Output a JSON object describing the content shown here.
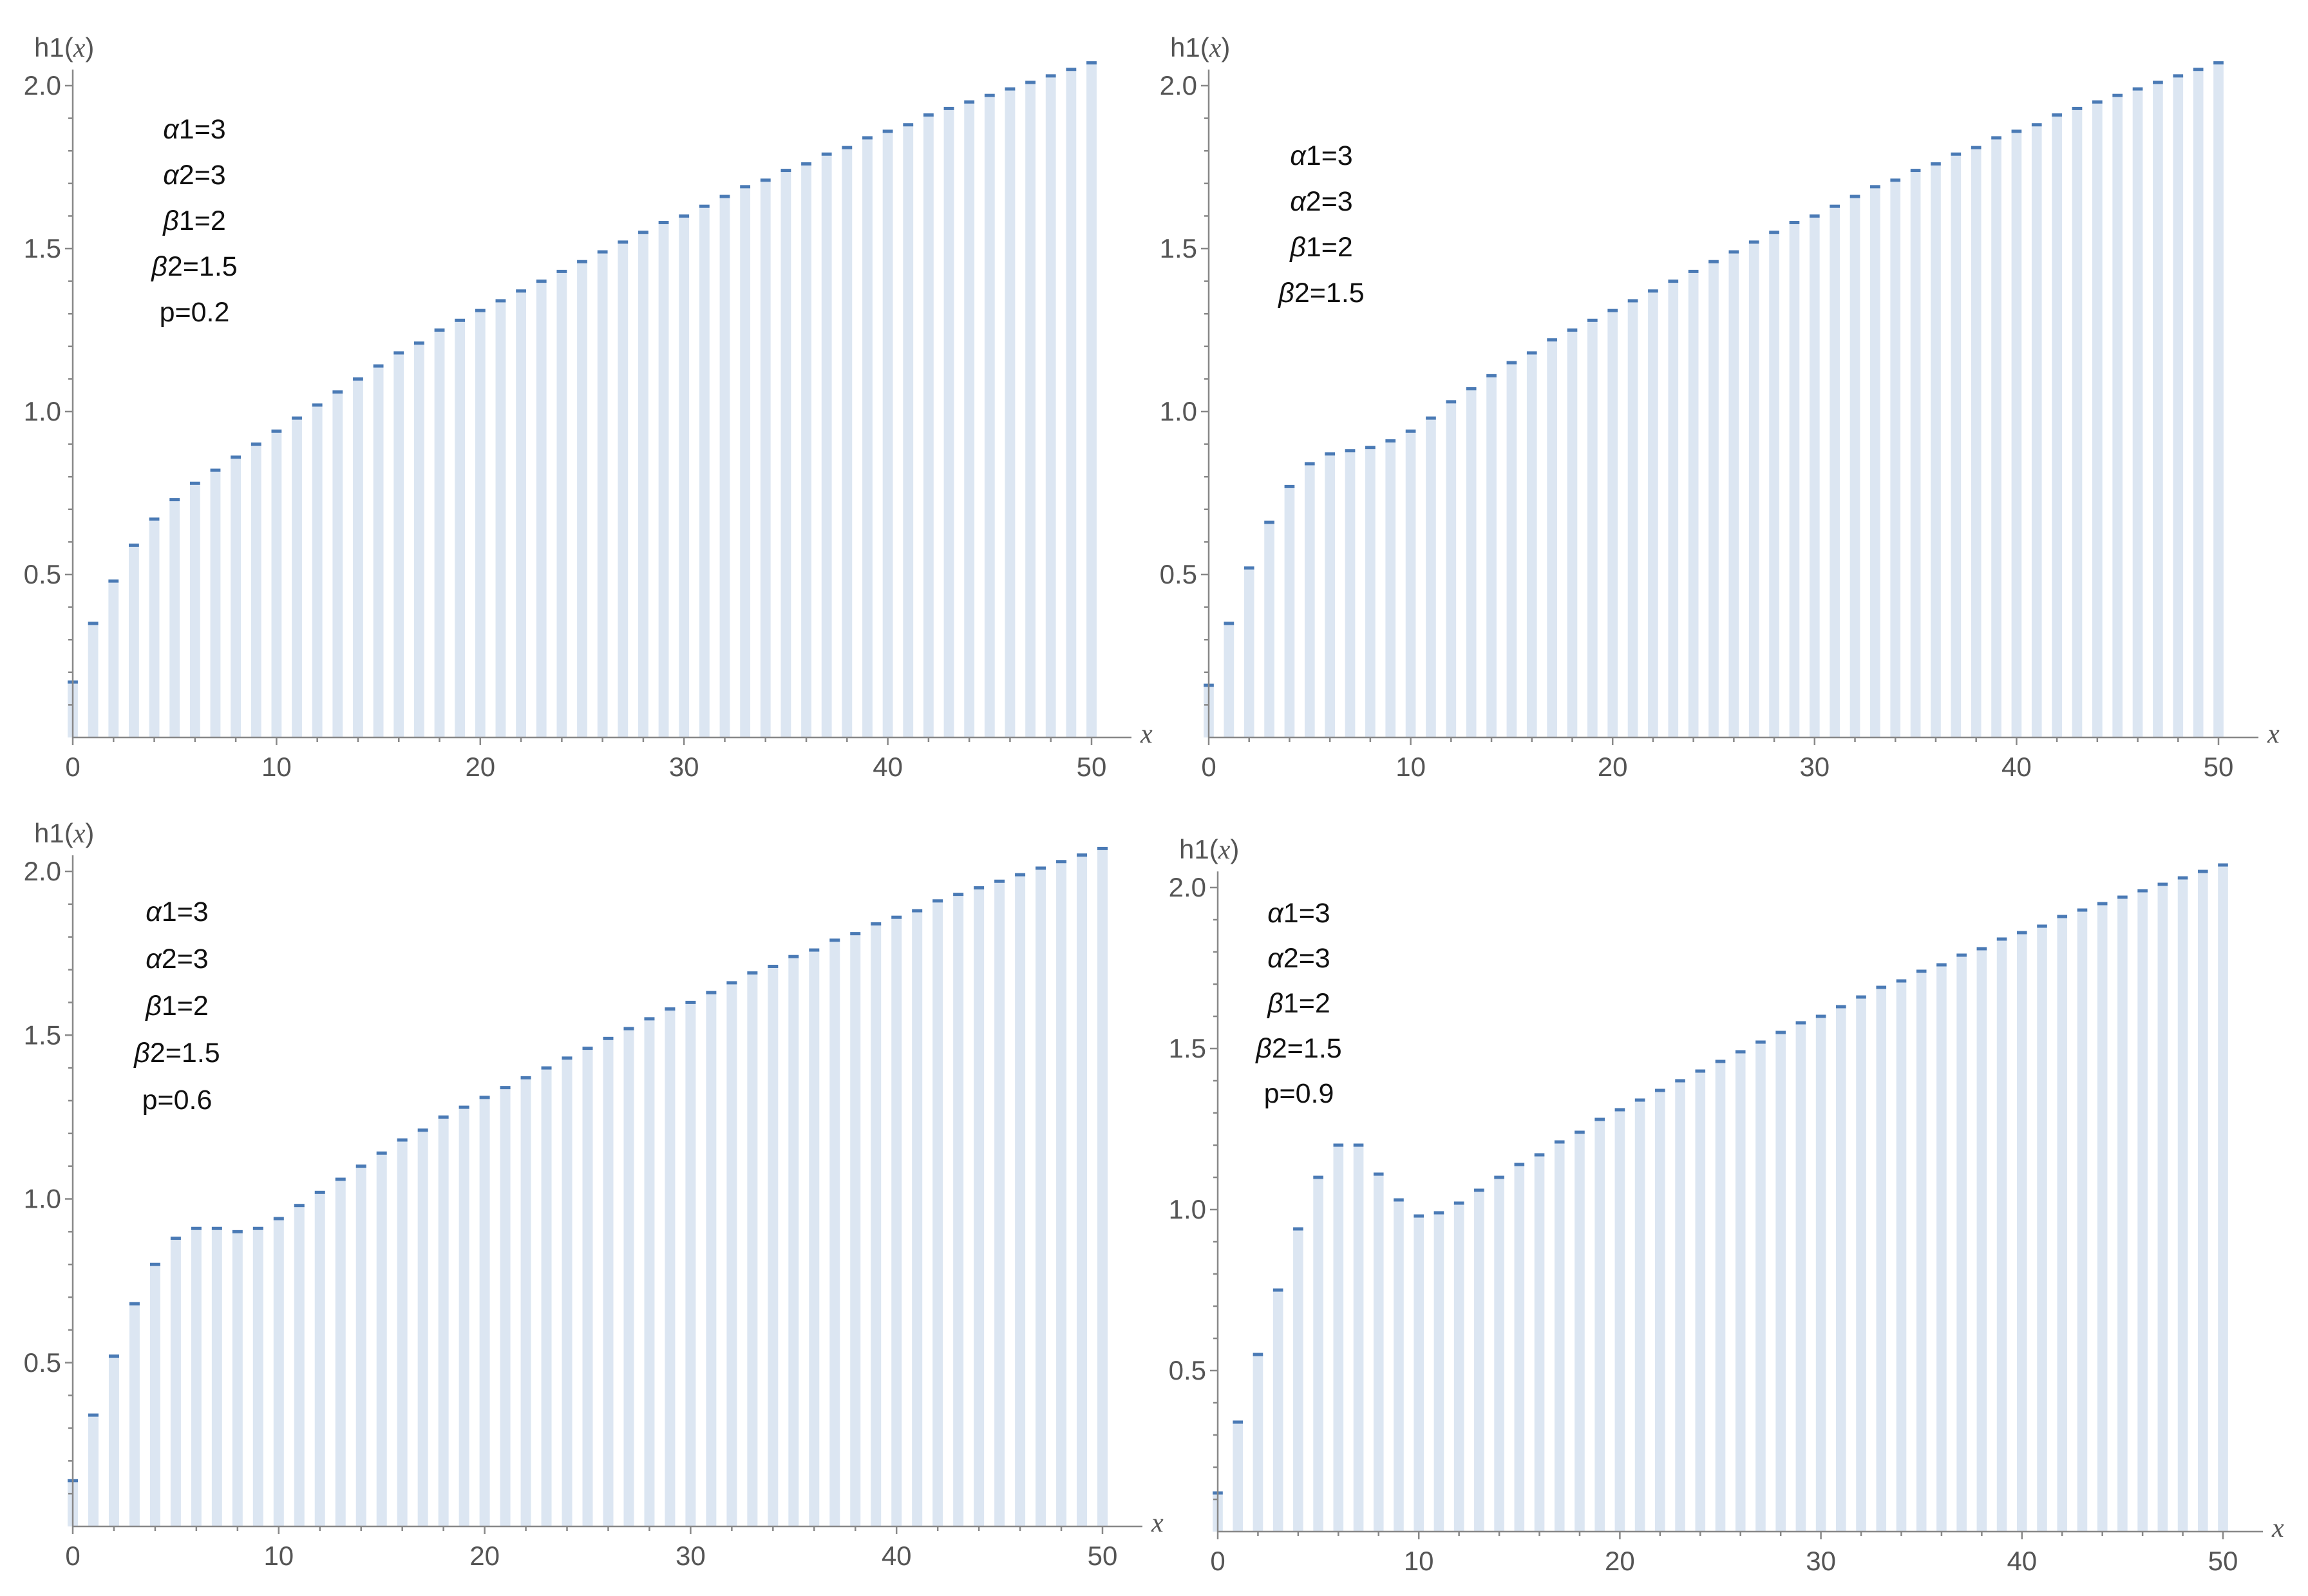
{
  "colors": {
    "bar": "#dce6f2",
    "cap": "#4a7ab5",
    "axis": "#888888",
    "tick_text": "#555555",
    "annotation": "#111111"
  },
  "chart_data": [
    {
      "type": "bar",
      "ylabel_prefix": "h1(",
      "ylabel_var": "x",
      "ylabel_suffix": ")",
      "xlabel": "x",
      "xlim": [
        0,
        50
      ],
      "ylim": [
        0,
        2.0
      ],
      "xticks": [
        "0",
        "10",
        "20",
        "30",
        "40",
        "50"
      ],
      "yticks": [
        "0.5",
        "1.0",
        "1.5",
        "2.0"
      ],
      "annotations": [
        "α1=3",
        "α2=3",
        "β1=2",
        "β2=1.5",
        "p=0.2"
      ],
      "series": [
        {
          "x": [
            0,
            1,
            2,
            3,
            4,
            5,
            6,
            7,
            8,
            9,
            10,
            11,
            12,
            13,
            14,
            15,
            16,
            17,
            18,
            19,
            20,
            21,
            22,
            23,
            24,
            25,
            26,
            27,
            28,
            29,
            30,
            31,
            32,
            33,
            34,
            35,
            36,
            37,
            38,
            39,
            40,
            41,
            42,
            43,
            44,
            45,
            46,
            47,
            48,
            49,
            50
          ],
          "values": [
            0.17,
            0.35,
            0.48,
            0.59,
            0.67,
            0.73,
            0.78,
            0.82,
            0.86,
            0.9,
            0.94,
            0.98,
            1.02,
            1.06,
            1.1,
            1.14,
            1.18,
            1.21,
            1.25,
            1.28,
            1.31,
            1.34,
            1.37,
            1.4,
            1.43,
            1.46,
            1.49,
            1.52,
            1.55,
            1.58,
            1.6,
            1.63,
            1.66,
            1.69,
            1.71,
            1.74,
            1.76,
            1.79,
            1.81,
            1.84,
            1.86,
            1.88,
            1.91,
            1.93,
            1.95,
            1.97,
            1.99,
            2.01,
            2.03,
            2.05,
            2.07
          ]
        }
      ]
    },
    {
      "type": "bar",
      "ylabel_prefix": "h1(",
      "ylabel_var": "x",
      "ylabel_suffix": ")",
      "xlabel": "x",
      "xlim": [
        0,
        50
      ],
      "ylim": [
        0,
        2.0
      ],
      "xticks": [
        "0",
        "10",
        "20",
        "30",
        "40",
        "50"
      ],
      "yticks": [
        "0.5",
        "1.0",
        "1.5",
        "2.0"
      ],
      "annotations": [
        "α1=3",
        "α2=3",
        "β1=2",
        "β2=1.5"
      ],
      "series": [
        {
          "x": [
            0,
            1,
            2,
            3,
            4,
            5,
            6,
            7,
            8,
            9,
            10,
            11,
            12,
            13,
            14,
            15,
            16,
            17,
            18,
            19,
            20,
            21,
            22,
            23,
            24,
            25,
            26,
            27,
            28,
            29,
            30,
            31,
            32,
            33,
            34,
            35,
            36,
            37,
            38,
            39,
            40,
            41,
            42,
            43,
            44,
            45,
            46,
            47,
            48,
            49,
            50
          ],
          "values": [
            0.16,
            0.35,
            0.52,
            0.66,
            0.77,
            0.84,
            0.87,
            0.88,
            0.89,
            0.91,
            0.94,
            0.98,
            1.03,
            1.07,
            1.11,
            1.15,
            1.18,
            1.22,
            1.25,
            1.28,
            1.31,
            1.34,
            1.37,
            1.4,
            1.43,
            1.46,
            1.49,
            1.52,
            1.55,
            1.58,
            1.6,
            1.63,
            1.66,
            1.69,
            1.71,
            1.74,
            1.76,
            1.79,
            1.81,
            1.84,
            1.86,
            1.88,
            1.91,
            1.93,
            1.95,
            1.97,
            1.99,
            2.01,
            2.03,
            2.05,
            2.07
          ]
        }
      ]
    },
    {
      "type": "bar",
      "ylabel_prefix": "h1(",
      "ylabel_var": "x",
      "ylabel_suffix": ")",
      "xlabel": "x",
      "xlim": [
        0,
        50
      ],
      "ylim": [
        0,
        2.0
      ],
      "xticks": [
        "0",
        "10",
        "20",
        "30",
        "40",
        "50"
      ],
      "yticks": [
        "0.5",
        "1.0",
        "1.5",
        "2.0"
      ],
      "annotations": [
        "α1=3",
        "α2=3",
        "β1=2",
        "β2=1.5",
        "p=0.6"
      ],
      "series": [
        {
          "x": [
            0,
            1,
            2,
            3,
            4,
            5,
            6,
            7,
            8,
            9,
            10,
            11,
            12,
            13,
            14,
            15,
            16,
            17,
            18,
            19,
            20,
            21,
            22,
            23,
            24,
            25,
            26,
            27,
            28,
            29,
            30,
            31,
            32,
            33,
            34,
            35,
            36,
            37,
            38,
            39,
            40,
            41,
            42,
            43,
            44,
            45,
            46,
            47,
            48,
            49,
            50
          ],
          "values": [
            0.14,
            0.34,
            0.52,
            0.68,
            0.8,
            0.88,
            0.91,
            0.91,
            0.9,
            0.91,
            0.94,
            0.98,
            1.02,
            1.06,
            1.1,
            1.14,
            1.18,
            1.21,
            1.25,
            1.28,
            1.31,
            1.34,
            1.37,
            1.4,
            1.43,
            1.46,
            1.49,
            1.52,
            1.55,
            1.58,
            1.6,
            1.63,
            1.66,
            1.69,
            1.71,
            1.74,
            1.76,
            1.79,
            1.81,
            1.84,
            1.86,
            1.88,
            1.91,
            1.93,
            1.95,
            1.97,
            1.99,
            2.01,
            2.03,
            2.05,
            2.07
          ]
        }
      ]
    },
    {
      "type": "bar",
      "ylabel_prefix": "h1(",
      "ylabel_var": "x",
      "ylabel_suffix": ")",
      "xlabel": "x",
      "xlim": [
        0,
        50
      ],
      "ylim": [
        0,
        2.0
      ],
      "xticks": [
        "0",
        "10",
        "20",
        "30",
        "40",
        "50"
      ],
      "yticks": [
        "0.5",
        "1.0",
        "1.5",
        "2.0"
      ],
      "annotations": [
        "α1=3",
        "α2=3",
        "β1=2",
        "β2=1.5",
        "p=0.9"
      ],
      "series": [
        {
          "x": [
            0,
            1,
            2,
            3,
            4,
            5,
            6,
            7,
            8,
            9,
            10,
            11,
            12,
            13,
            14,
            15,
            16,
            17,
            18,
            19,
            20,
            21,
            22,
            23,
            24,
            25,
            26,
            27,
            28,
            29,
            30,
            31,
            32,
            33,
            34,
            35,
            36,
            37,
            38,
            39,
            40,
            41,
            42,
            43,
            44,
            45,
            46,
            47,
            48,
            49,
            50
          ],
          "values": [
            0.12,
            0.34,
            0.55,
            0.75,
            0.94,
            1.1,
            1.2,
            1.2,
            1.11,
            1.03,
            0.98,
            0.99,
            1.02,
            1.06,
            1.1,
            1.14,
            1.17,
            1.21,
            1.24,
            1.28,
            1.31,
            1.34,
            1.37,
            1.4,
            1.43,
            1.46,
            1.49,
            1.52,
            1.55,
            1.58,
            1.6,
            1.63,
            1.66,
            1.69,
            1.71,
            1.74,
            1.76,
            1.79,
            1.81,
            1.84,
            1.86,
            1.88,
            1.91,
            1.93,
            1.95,
            1.97,
            1.99,
            2.01,
            2.03,
            2.05,
            2.07
          ]
        }
      ]
    }
  ]
}
